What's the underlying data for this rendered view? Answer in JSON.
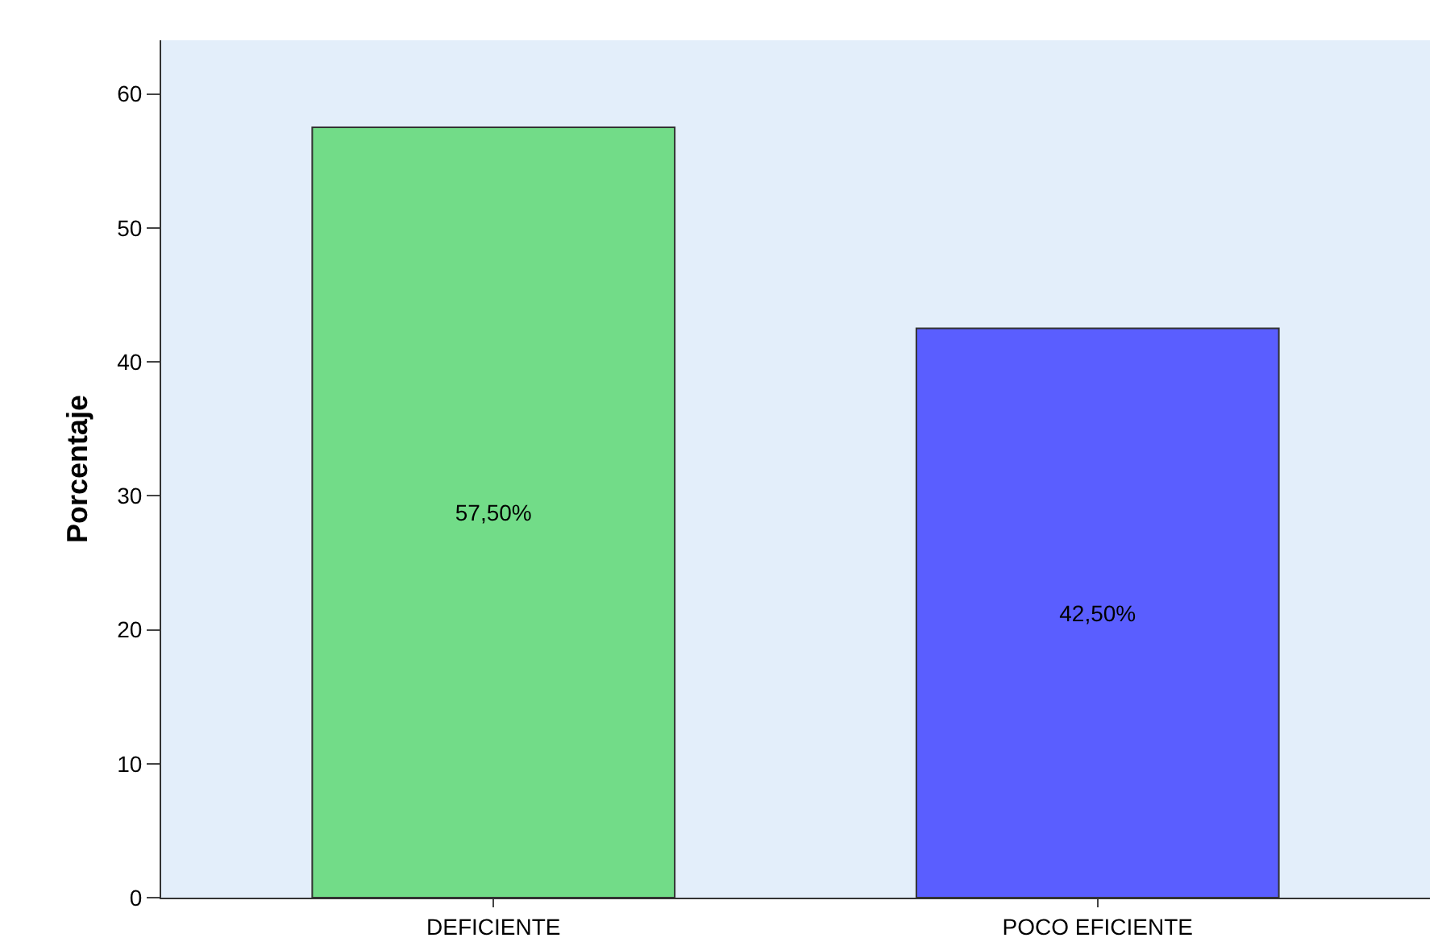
{
  "chart_data": {
    "type": "bar",
    "ylabel": "Porcentaje",
    "categories": [
      "DEFICIENTE",
      "POCO EFICIENTE"
    ],
    "values": [
      57.5,
      42.5
    ],
    "value_labels": [
      "57,50%",
      "42,50%"
    ],
    "colors": [
      "#72dc88",
      "#5a5eff"
    ],
    "ylim": [
      0,
      64
    ],
    "yticks": [
      0,
      10,
      20,
      30,
      40,
      50,
      60
    ],
    "grid": false
  }
}
